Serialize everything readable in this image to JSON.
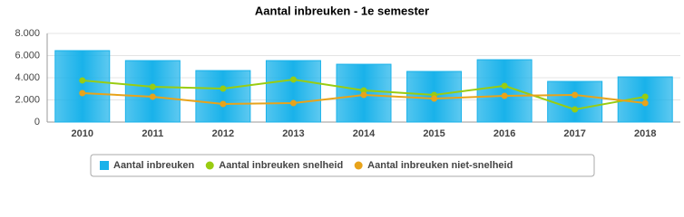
{
  "chart_data": {
    "type": "bar",
    "title": "Aantal inbreuken - 1e semester",
    "categories": [
      "2010",
      "2011",
      "2012",
      "2013",
      "2014",
      "2015",
      "2016",
      "2017",
      "2018"
    ],
    "series": [
      {
        "name": "Aantal inbreuken",
        "type": "bar",
        "color": "#19b2ea",
        "values": [
          6450,
          5550,
          4650,
          5550,
          5220,
          4570,
          5630,
          3670,
          4080
        ]
      },
      {
        "name": "Aantal inbreuken snelheid",
        "type": "line",
        "color": "#99cc11",
        "values": [
          3760,
          3180,
          3020,
          3840,
          2860,
          2450,
          3270,
          1140,
          2290
        ]
      },
      {
        "name": "Aantal inbreuken niet-snelheid",
        "type": "line",
        "color": "#e8a31a",
        "values": [
          2610,
          2290,
          1630,
          1710,
          2450,
          2120,
          2370,
          2450,
          1710
        ]
      }
    ],
    "ylim": [
      0,
      8000
    ],
    "yticks": [
      {
        "value": 0,
        "label": "0"
      },
      {
        "value": 2000,
        "label": "2.000"
      },
      {
        "value": 4000,
        "label": "4.000"
      },
      {
        "value": 6000,
        "label": "6.000"
      },
      {
        "value": 8000,
        "label": "8.000"
      }
    ],
    "grid": true
  }
}
